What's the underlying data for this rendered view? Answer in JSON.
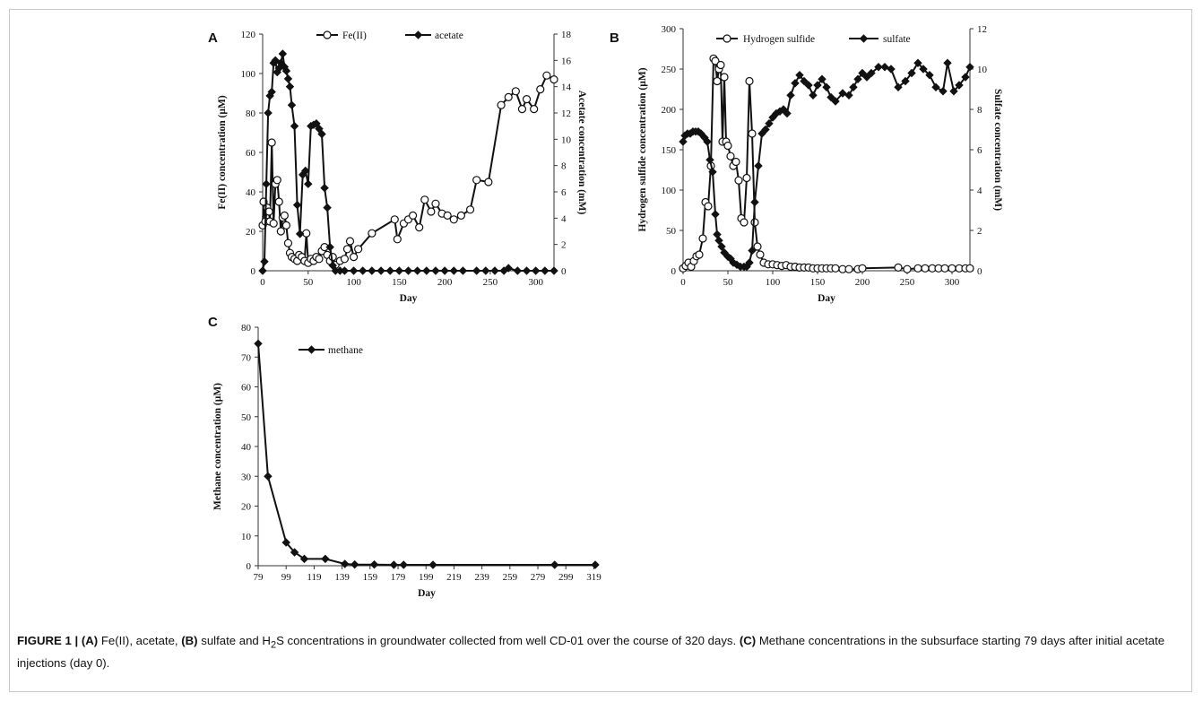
{
  "caption": {
    "lead": "FIGURE 1 | ",
    "a_tag": "(A)",
    "a_text": " Fe(II), acetate, ",
    "b_tag": "(B)",
    "b_text_1": " sulfate and H",
    "b_sub": "2",
    "b_text_2": "S concentrations in groundwater collected from well CD-01 over the course of 320 days. ",
    "c_tag": "(C)",
    "c_text": " Methane concentrations in the subsurface starting 79 days after initial acetate injections (day 0)."
  },
  "chart_data": [
    {
      "panel": "A",
      "type": "line",
      "xlabel": "Day",
      "ylabel": "Fe(II) concentration (µM)",
      "y2label": "Acetate concentration (mM)",
      "xlim": [
        0,
        320
      ],
      "xticks": [
        0,
        50,
        100,
        150,
        200,
        250,
        300
      ],
      "ylim": [
        0,
        120
      ],
      "yticks": [
        0,
        20,
        40,
        60,
        80,
        100,
        120
      ],
      "y2lim": [
        0,
        18
      ],
      "y2ticks": [
        0,
        2,
        4,
        6,
        8,
        10,
        12,
        14,
        16,
        18
      ],
      "legend": "top",
      "series": [
        {
          "name": "Fe(II)",
          "axis": "left",
          "marker": "open-circle",
          "x": [
            0,
            1,
            3,
            5,
            7,
            8,
            10,
            12,
            14,
            16,
            18,
            20,
            22,
            24,
            26,
            28,
            30,
            32,
            35,
            38,
            40,
            43,
            46,
            48,
            50,
            53,
            56,
            59,
            62,
            65,
            68,
            71,
            74,
            77,
            80,
            85,
            90,
            93,
            96,
            100,
            105,
            120,
            145,
            148,
            155,
            160,
            165,
            172,
            178,
            185,
            190,
            197,
            203,
            210,
            218,
            228,
            235,
            248,
            262,
            270,
            278,
            285,
            290,
            298,
            305,
            312,
            320
          ],
          "y": [
            23,
            35,
            25,
            32,
            30,
            25,
            65,
            24,
            44,
            46,
            35,
            20,
            27,
            28,
            23,
            14,
            9,
            7,
            6,
            5,
            8,
            7,
            5,
            19,
            4,
            6,
            5,
            7,
            6,
            10,
            12,
            8,
            5,
            7,
            3,
            5,
            6,
            11,
            15,
            7,
            11,
            19,
            26,
            16,
            24,
            26,
            28,
            22,
            36,
            30,
            34,
            29,
            28,
            26,
            28,
            31,
            46,
            45,
            84,
            88,
            91,
            82,
            87,
            82,
            92,
            99,
            97
          ]
        },
        {
          "name": "acetate",
          "axis": "right",
          "marker": "filled-diamond",
          "x": [
            0,
            2,
            4,
            6,
            8,
            10,
            12,
            14,
            16,
            18,
            20,
            22,
            24,
            26,
            28,
            30,
            32,
            35,
            38,
            41,
            44,
            47,
            50,
            53,
            56,
            59,
            62,
            65,
            68,
            71,
            74,
            77,
            80,
            85,
            90,
            100,
            110,
            120,
            130,
            140,
            150,
            160,
            170,
            180,
            190,
            200,
            210,
            220,
            235,
            245,
            255,
            265,
            270,
            280,
            290,
            300,
            310,
            320
          ],
          "y": [
            0,
            0.7,
            6.6,
            12,
            13.3,
            13.6,
            15.8,
            16,
            15.1,
            15.4,
            15.8,
            16.5,
            15.5,
            15.2,
            14.6,
            14,
            12.6,
            11,
            5,
            2.8,
            7.3,
            7.6,
            6.6,
            11,
            11.1,
            11.2,
            10.8,
            10.4,
            6.3,
            4.8,
            1.8,
            0.4,
            0,
            0,
            0,
            0,
            0,
            0,
            0,
            0,
            0,
            0,
            0,
            0,
            0,
            0,
            0,
            0,
            0,
            0,
            0,
            0,
            0.2,
            0,
            0,
            0,
            0,
            0
          ]
        }
      ]
    },
    {
      "panel": "B",
      "type": "line",
      "xlabel": "Day",
      "ylabel": "Hydrogen sulfide concentration (µM)",
      "y2label": "Sulfate concentration (mM)",
      "xlim": [
        0,
        320
      ],
      "xticks": [
        0,
        50,
        100,
        150,
        200,
        250,
        300
      ],
      "ylim": [
        0,
        300
      ],
      "yticks": [
        0,
        50,
        100,
        150,
        200,
        250,
        300
      ],
      "y2lim": [
        0,
        12
      ],
      "y2ticks": [
        0,
        2,
        4,
        6,
        8,
        10,
        12
      ],
      "legend": "top",
      "series": [
        {
          "name": "Hydrogen sulfide",
          "axis": "left",
          "marker": "open-circle",
          "x": [
            0,
            3,
            6,
            9,
            12,
            15,
            18,
            22,
            25,
            28,
            31,
            34,
            36,
            38,
            40,
            42,
            44,
            46,
            48,
            50,
            53,
            56,
            59,
            62,
            65,
            68,
            71,
            74,
            77,
            80,
            83,
            86,
            90,
            95,
            100,
            105,
            110,
            115,
            120,
            125,
            130,
            135,
            140,
            145,
            150,
            155,
            160,
            165,
            170,
            178,
            185,
            195,
            200,
            240,
            250,
            262,
            270,
            278,
            285,
            292,
            300,
            308,
            315,
            320
          ],
          "y": [
            3,
            6,
            10,
            5,
            12,
            18,
            20,
            40,
            85,
            80,
            130,
            263,
            260,
            235,
            250,
            255,
            160,
            240,
            160,
            155,
            142,
            130,
            135,
            112,
            65,
            60,
            115,
            235,
            170,
            60,
            30,
            20,
            10,
            8,
            8,
            7,
            6,
            7,
            5,
            5,
            4,
            4,
            4,
            3,
            3,
            3,
            3,
            3,
            3,
            2,
            2,
            2,
            3,
            4,
            2,
            3,
            3,
            3,
            3,
            3,
            3,
            3,
            3,
            3
          ]
        },
        {
          "name": "sulfate",
          "axis": "right",
          "marker": "filled-diamond",
          "x": [
            0,
            2,
            5,
            8,
            11,
            14,
            17,
            20,
            24,
            27,
            30,
            33,
            36,
            38,
            40,
            43,
            46,
            50,
            53,
            56,
            60,
            64,
            68,
            71,
            74,
            77,
            80,
            84,
            88,
            92,
            96,
            100,
            104,
            108,
            112,
            116,
            120,
            125,
            130,
            135,
            140,
            145,
            150,
            155,
            160,
            165,
            170,
            178,
            185,
            190,
            195,
            200,
            205,
            210,
            218,
            225,
            232,
            240,
            248,
            255,
            262,
            268,
            275,
            282,
            290,
            295,
            302,
            308,
            315,
            320
          ],
          "y": [
            6.4,
            6.7,
            6.8,
            6.8,
            6.9,
            6.9,
            6.9,
            6.8,
            6.6,
            6.4,
            5.5,
            4.9,
            2.8,
            1.8,
            1.5,
            1.2,
            0.9,
            0.7,
            0.6,
            0.4,
            0.3,
            0.2,
            0.2,
            0.2,
            0.4,
            1,
            3.4,
            5.2,
            6.8,
            7,
            7.3,
            7.6,
            7.8,
            7.9,
            8,
            7.8,
            8.7,
            9.3,
            9.7,
            9.4,
            9.2,
            8.7,
            9.2,
            9.5,
            9.1,
            8.6,
            8.4,
            8.8,
            8.7,
            9.1,
            9.5,
            9.8,
            9.6,
            9.8,
            10.1,
            10.1,
            10,
            9.1,
            9.4,
            9.8,
            10.3,
            10,
            9.7,
            9.1,
            8.9,
            10.3,
            8.9,
            9.2,
            9.6,
            10.1
          ]
        }
      ]
    },
    {
      "panel": "C",
      "type": "line",
      "xlabel": "Day",
      "ylabel": "Methane concentration (µM)",
      "xlim": [
        79,
        320
      ],
      "xticks": [
        79,
        99,
        119,
        139,
        159,
        179,
        199,
        219,
        239,
        259,
        279,
        299,
        319
      ],
      "ylim": [
        0,
        80
      ],
      "yticks": [
        0,
        10,
        20,
        30,
        40,
        50,
        60,
        70,
        80
      ],
      "legend": "top",
      "series": [
        {
          "name": "methane",
          "axis": "left",
          "marker": "filled-diamond",
          "x": [
            79,
            86,
            99,
            105,
            112,
            127,
            141,
            148,
            162,
            176,
            183,
            204,
            291,
            320
          ],
          "y": [
            74.5,
            30,
            7.8,
            4.5,
            2.3,
            2.3,
            0.6,
            0.4,
            0.4,
            0.3,
            0.3,
            0.3,
            0.3,
            0.3
          ]
        }
      ]
    }
  ]
}
